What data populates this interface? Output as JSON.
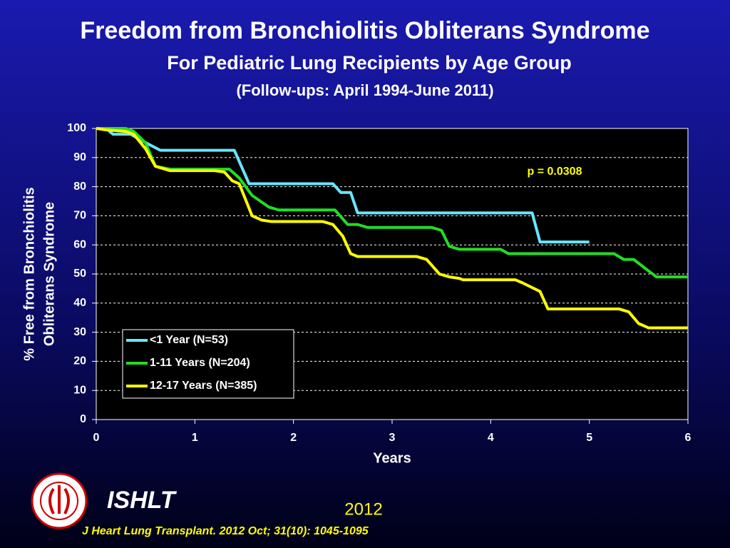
{
  "chart_data": {
    "type": "line",
    "title": "Freedom from Bronchiolitis Obliterans Syndrome",
    "subtitle": "For Pediatric Lung Recipients by Age Group",
    "subtitle2": "(Follow-ups: April 1994-June 2011)",
    "xlabel": "Years",
    "ylabel": [
      "% Free from Bronchiolitis",
      "Obliterans Syndrome"
    ],
    "annotation": "p = 0.0308",
    "annotation_color": "#ffff00",
    "xlim": [
      0,
      6
    ],
    "xticks": [
      0,
      1,
      2,
      3,
      4,
      5,
      6
    ],
    "ylim": [
      0,
      100
    ],
    "yticks": [
      0,
      10,
      20,
      30,
      40,
      50,
      60,
      70,
      80,
      90,
      100
    ],
    "grid": true,
    "legend": "lower left",
    "series": [
      {
        "name": "<1 Year (N=53)",
        "color": "#66e6ff",
        "x": [
          0,
          0.1,
          0.17,
          0.35,
          0.45,
          0.65,
          1.4,
          1.55,
          2.4,
          2.48,
          2.58,
          2.65,
          4.42,
          4.5,
          5.0
        ],
        "values": [
          100,
          100,
          98,
          98,
          96,
          92.5,
          92.5,
          81,
          81,
          78,
          78,
          71,
          71,
          61,
          61
        ]
      },
      {
        "name": "1-11 Years  (N=204)",
        "color": "#22dd22",
        "x": [
          0,
          0.3,
          0.38,
          0.5,
          0.6,
          0.75,
          1.35,
          1.45,
          1.58,
          1.75,
          1.85,
          2.42,
          2.55,
          2.65,
          2.75,
          3.4,
          3.5,
          3.58,
          3.68,
          4.1,
          4.18,
          5.25,
          5.35,
          5.45,
          5.68,
          6
        ],
        "values": [
          100,
          100,
          99,
          95,
          87,
          86,
          86,
          83,
          77,
          73,
          72,
          72,
          67,
          67,
          66,
          66,
          65,
          59.5,
          58.5,
          58.5,
          57,
          57,
          55,
          55,
          49,
          49
        ]
      },
      {
        "name": "12-17 Years (N=385)",
        "color": "#ffff00",
        "x": [
          0,
          0.1,
          0.3,
          0.38,
          0.5,
          0.6,
          0.75,
          1.2,
          1.3,
          1.38,
          1.45,
          1.58,
          1.68,
          1.78,
          2.3,
          2.4,
          2.5,
          2.58,
          2.65,
          3.25,
          3.35,
          3.48,
          3.58,
          3.68,
          3.72,
          4.25,
          4.32,
          4.5,
          4.58,
          5.3,
          5.4,
          5.5,
          5.6,
          6
        ],
        "values": [
          100,
          99.5,
          99,
          98,
          93,
          87,
          85.5,
          85.5,
          85,
          82,
          81,
          70,
          68.5,
          68,
          68,
          67,
          63,
          57,
          56,
          56,
          55,
          50,
          49,
          48.5,
          48,
          48,
          47,
          44,
          38,
          38,
          37,
          33,
          31.5,
          31.5
        ]
      }
    ]
  },
  "footer": {
    "org": "ISHLT",
    "year": "2012",
    "citation": "J Heart Lung Transplant.  2012 Oct; 31(10): 1045-1095"
  }
}
